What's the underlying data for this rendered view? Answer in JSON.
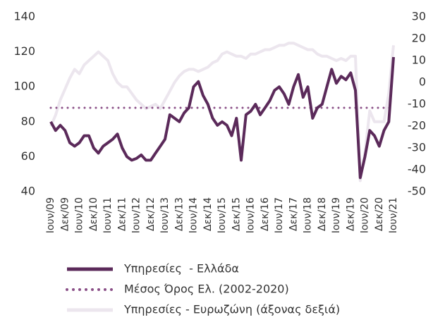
{
  "chart_data": {
    "type": "line",
    "categories": [
      "Ιουν/09",
      null,
      null,
      "Δεκ/09",
      null,
      null,
      "Ιουν/10",
      null,
      null,
      "Δεκ/10",
      null,
      null,
      "Ιουν/11",
      null,
      null,
      "Δεκ/11",
      null,
      null,
      "Ιουν/12",
      null,
      null,
      "Δεκ/12",
      null,
      null,
      "Ιουν/13",
      null,
      null,
      "Δεκ/13",
      null,
      null,
      "Ιουν/14",
      null,
      null,
      "Δεκ/14",
      null,
      null,
      "Ιουν/15",
      null,
      null,
      "Δεκ/15",
      null,
      null,
      "Ιουν/16",
      null,
      null,
      "Δεκ/16",
      null,
      null,
      "Ιουν/17",
      null,
      null,
      "Δεκ/17",
      null,
      null,
      "Ιουν/18",
      null,
      null,
      "Δεκ/18",
      null,
      null,
      "Ιουν/19",
      null,
      null,
      "Δεκ/19",
      null,
      null,
      "Ιουν/20",
      null,
      null,
      "Δεκ/20",
      null,
      null,
      "Ιουν/21"
    ],
    "series": [
      {
        "name": "Υπηρεσίες - Ευρωζώνη (άξονας δεξιά)",
        "color": "#ece6ee",
        "axis": "y2",
        "style": "solid",
        "values": [
          -20,
          -15,
          -8,
          -3,
          2,
          6,
          4,
          8,
          10,
          12,
          14,
          12,
          10,
          4,
          0,
          -2,
          -2,
          -5,
          -8,
          -10,
          -12,
          -11,
          -10,
          -12,
          -8,
          -4,
          0,
          3,
          5,
          6,
          6,
          5,
          6,
          7,
          9,
          10,
          13,
          14,
          13,
          12,
          12,
          11,
          13,
          13,
          14,
          15,
          15,
          16,
          17,
          17,
          18,
          18,
          17,
          16,
          15,
          15,
          13,
          12,
          12,
          11,
          10,
          11,
          10,
          12,
          12,
          -45,
          -32,
          -13,
          -18,
          -18,
          -18,
          -5,
          17
        ]
      },
      {
        "name": "Μέσος Όρος Ελ. (2002-2020)",
        "color": "#8a4f87",
        "axis": "y",
        "style": "dotted",
        "values": [
          88,
          88,
          88,
          88,
          88,
          88,
          88,
          88,
          88,
          88,
          88,
          88,
          88,
          88,
          88,
          88,
          88,
          88,
          88,
          88,
          88,
          88,
          88,
          88,
          88,
          88,
          88,
          88,
          88,
          88,
          88,
          88,
          88,
          88,
          88,
          88,
          88,
          88,
          88,
          88,
          88,
          88,
          88,
          88,
          88,
          88,
          88,
          88,
          88,
          88,
          88,
          88,
          88,
          88,
          88,
          88,
          88,
          88,
          88,
          88,
          88,
          88,
          88,
          88,
          88,
          88,
          88,
          88,
          88,
          88,
          88,
          88,
          88
        ]
      },
      {
        "name": "Υπηρεσίες  - Ελλάδα",
        "color": "#5b2a5a",
        "axis": "y",
        "style": "solid",
        "values": [
          80,
          75,
          78,
          75,
          68,
          66,
          68,
          72,
          72,
          65,
          62,
          66,
          68,
          70,
          73,
          65,
          60,
          58,
          59,
          61,
          58,
          58,
          62,
          66,
          70,
          84,
          82,
          80,
          85,
          88,
          100,
          103,
          95,
          90,
          82,
          78,
          80,
          78,
          72,
          82,
          58,
          84,
          86,
          90,
          84,
          88,
          92,
          98,
          100,
          96,
          90,
          100,
          107,
          94,
          100,
          82,
          88,
          90,
          100,
          110,
          102,
          106,
          104,
          108,
          98,
          48,
          60,
          75,
          72,
          66,
          75,
          80,
          117
        ]
      }
    ],
    "legend_order": [
      2,
      1,
      0
    ],
    "ylim": [
      40,
      140
    ],
    "yticks": [
      40,
      60,
      80,
      100,
      120,
      140
    ],
    "y2lim": [
      -50,
      30
    ],
    "y2ticks": [
      -50,
      -40,
      -30,
      -20,
      -10,
      0,
      10,
      20,
      30
    ]
  }
}
